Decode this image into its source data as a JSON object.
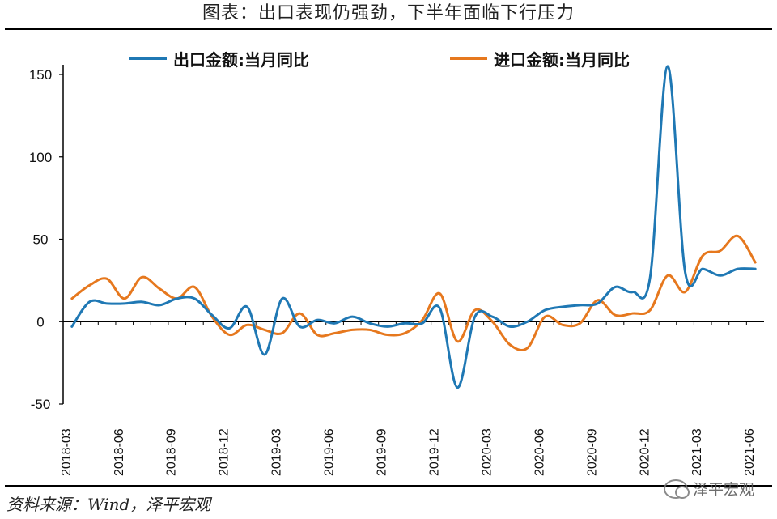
{
  "title": "图表：出口表现仍强劲，下半年面临下行压力",
  "source": "资料来源：Wind，泽平宏观",
  "watermark": "泽平宏观",
  "colors": {
    "export": "#1f78b4",
    "import": "#e6781e"
  },
  "chart_data": {
    "type": "line",
    "title": "图表：出口表现仍强劲，下半年面临下行压力",
    "xlabel": "",
    "ylabel": "",
    "ylim": [
      -50,
      150
    ],
    "yticks": [
      -50,
      0,
      50,
      100,
      150
    ],
    "legend_position": "top",
    "grid": false,
    "x": [
      "2018-03",
      "2018-04",
      "2018-05",
      "2018-06",
      "2018-07",
      "2018-08",
      "2018-09",
      "2018-10",
      "2018-11",
      "2018-12",
      "2019-01",
      "2019-02",
      "2019-03",
      "2019-04",
      "2019-05",
      "2019-06",
      "2019-07",
      "2019-08",
      "2019-09",
      "2019-10",
      "2019-11",
      "2019-12",
      "2020-01",
      "2020-02",
      "2020-03",
      "2020-04",
      "2020-05",
      "2020-06",
      "2020-07",
      "2020-08",
      "2020-09",
      "2020-10",
      "2020-11",
      "2020-12",
      "2021-01",
      "2021-02",
      "2021-03",
      "2021-04",
      "2021-05",
      "2021-06"
    ],
    "xticks": [
      "2018-03",
      "2018-06",
      "2018-09",
      "2018-12",
      "2019-03",
      "2019-06",
      "2019-09",
      "2019-12",
      "2020-03",
      "2020-06",
      "2020-09",
      "2020-12",
      "2021-03",
      "2021-06"
    ],
    "series": [
      {
        "name": "出口金额:当月同比",
        "values": [
          -3,
          12,
          11,
          11,
          12,
          10,
          14,
          14,
          4,
          -4,
          9,
          -20,
          14,
          -3,
          1,
          -1,
          3,
          -1,
          -3,
          -1,
          -1,
          8,
          -40,
          3,
          3,
          -3,
          0,
          7,
          9,
          10,
          11,
          21,
          18,
          27,
          155,
          30,
          32,
          28,
          32,
          32
        ]
      },
      {
        "name": "进口金额:当月同比",
        "values": [
          14,
          22,
          26,
          14,
          27,
          20,
          14,
          21,
          3,
          -8,
          -2,
          -5,
          -7,
          5,
          -8,
          -7,
          -5,
          -5,
          -8,
          -7,
          1,
          17,
          -12,
          7,
          0,
          -14,
          -16,
          3,
          -2,
          -1,
          13,
          4,
          5,
          7,
          28,
          18,
          40,
          43,
          52,
          36
        ]
      }
    ]
  }
}
